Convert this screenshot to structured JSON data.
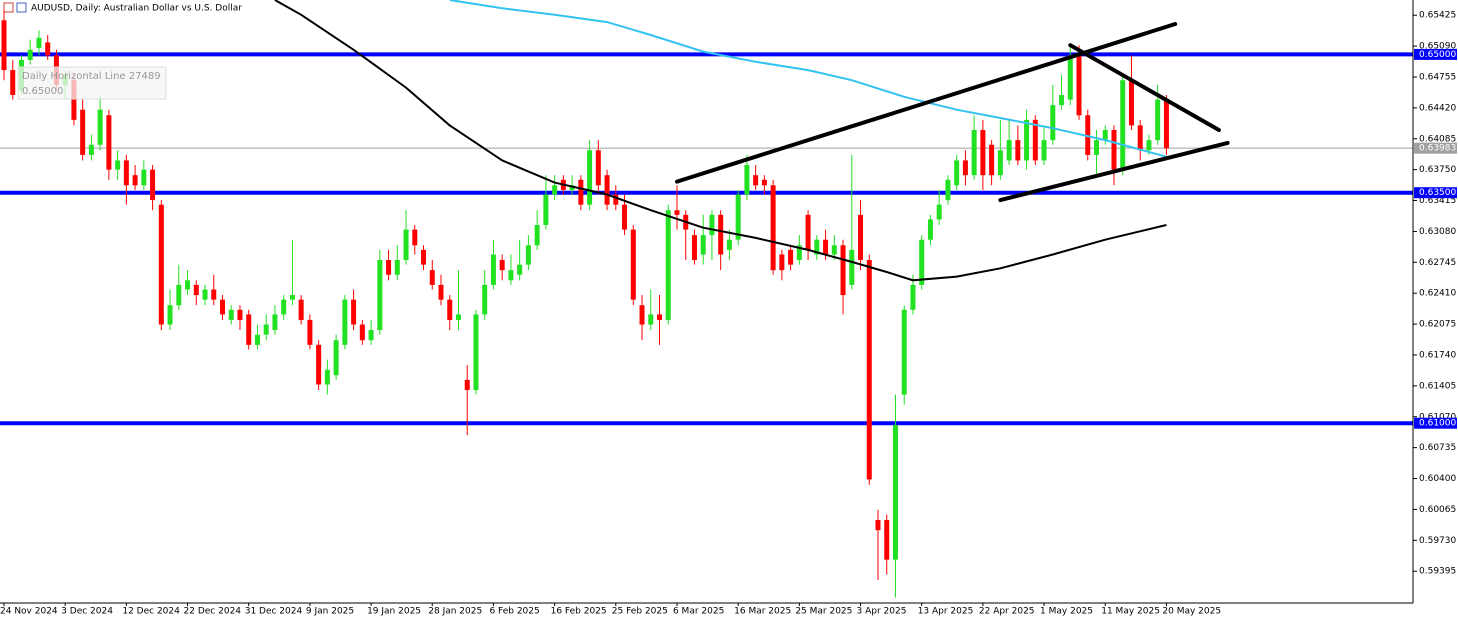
{
  "chart_data": {
    "type": "candlestick",
    "title": "AUDUSD, Daily:  Australian Dollar vs U.S. Dollar",
    "tooltip": [
      "Daily Horizontal Line 27489",
      "0.65000"
    ],
    "categories": [
      "24 Nov 2024",
      null,
      null,
      null,
      null,
      null,
      null,
      "3 Dec 2024",
      null,
      null,
      null,
      null,
      null,
      null,
      "12 Dec 2024",
      null,
      null,
      null,
      null,
      null,
      null,
      "22 Dec 2024",
      null,
      null,
      null,
      null,
      null,
      null,
      "31 Dec 2024",
      null,
      null,
      null,
      null,
      null,
      null,
      "9 Jan 2025",
      null,
      null,
      null,
      null,
      null,
      null,
      "19 Jan 2025",
      null,
      null,
      null,
      null,
      null,
      null,
      "28 Jan 2025",
      null,
      null,
      null,
      null,
      null,
      null,
      "6 Feb 2025",
      null,
      null,
      null,
      null,
      null,
      null,
      "16 Feb 2025",
      null,
      null,
      null,
      null,
      null,
      null,
      "25 Feb 2025",
      null,
      null,
      null,
      null,
      null,
      null,
      "6 Mar 2025",
      null,
      null,
      null,
      null,
      null,
      null,
      "16 Mar 2025",
      null,
      null,
      null,
      null,
      null,
      null,
      "25 Mar 2025",
      null,
      null,
      null,
      null,
      null,
      null,
      "3 Apr 2025",
      null,
      null,
      null,
      null,
      null,
      null,
      "13 Apr 2025",
      null,
      null,
      null,
      null,
      null,
      null,
      "22 Apr 2025",
      null,
      null,
      null,
      null,
      null,
      null,
      "1 May 2025",
      null,
      null,
      null,
      null,
      null,
      null,
      "11 May 2025",
      null,
      null,
      null,
      null,
      null,
      null,
      "20 May 2025"
    ],
    "open": [
      0.6537,
      0.6483,
      0.6461,
      0.6494,
      0.6507,
      0.6513,
      0.6499,
      0.6467,
      0.6472,
      0.644,
      0.6391,
      0.6402,
      0.6434,
      0.6375,
      0.6385,
      0.6369,
      0.6358,
      0.6375,
      0.6337,
      0.6207,
      0.6228,
      0.6245,
      0.625,
      0.6234,
      0.6245,
      0.6234,
      0.6212,
      0.6223,
      0.6218,
      0.6185,
      0.6196,
      0.6201,
      0.6218,
      0.6234,
      0.6234,
      0.6212,
      0.6185,
      0.6142,
      0.6152,
      0.6185,
      0.6234,
      0.6207,
      0.619,
      0.6201,
      0.6277,
      0.6261,
      0.6277,
      0.631,
      0.6288,
      0.6266,
      0.625,
      0.6234,
      0.6212,
      0.6147,
      0.6136,
      0.6218,
      0.625,
      0.6277,
      0.6255,
      0.6261,
      0.6272,
      0.6293,
      0.6315,
      0.6348,
      0.6364,
      0.6353,
      0.6364,
      0.6337,
      0.6396,
      0.6369,
      0.6348,
      0.6337,
      0.631,
      0.6228,
      0.6207,
      0.6218,
      0.6212,
      0.6331,
      0.6326,
      0.6304,
      0.6283,
      0.6304,
      0.6326,
      0.6288,
      0.6299,
      0.6348,
      0.6369,
      0.6364,
      0.6358,
      0.6283,
      0.6288,
      0.6277,
      0.6326,
      0.6283,
      0.6299,
      0.6283,
      0.6293,
      0.625,
      0.6326,
      0.6277,
      0.5995,
      0.5995,
      0.5952,
      0.6131,
      0.6223,
      0.625,
      0.6299,
      0.6321,
      0.6342,
      0.6358,
      0.6385,
      0.6369,
      0.6418,
      0.6402,
      0.6369,
      0.6385,
      0.6407,
      0.6385,
      0.6429,
      0.6385,
      0.6407,
      0.6445,
      0.6451,
      0.6499,
      0.6434,
      0.6391,
      0.6407,
      0.6418,
      0.6375,
      0.6472,
      0.6423,
      0.6396,
      0.6407,
      0.6451
    ],
    "high": [
      0.6548,
      0.6494,
      0.6499,
      0.6516,
      0.6526,
      0.6521,
      0.6505,
      0.6483,
      0.6478,
      0.6451,
      0.6413,
      0.6456,
      0.644,
      0.6396,
      0.6391,
      0.638,
      0.6385,
      0.638,
      0.6342,
      0.6245,
      0.6272,
      0.6266,
      0.6255,
      0.625,
      0.6261,
      0.6239,
      0.6228,
      0.6228,
      0.6223,
      0.6207,
      0.6218,
      0.6228,
      0.6239,
      0.6299,
      0.6239,
      0.6218,
      0.619,
      0.6169,
      0.6196,
      0.6239,
      0.6245,
      0.6212,
      0.6212,
      0.6288,
      0.6288,
      0.6293,
      0.6331,
      0.6315,
      0.6293,
      0.6277,
      0.6261,
      0.6239,
      0.6266,
      0.6163,
      0.6223,
      0.6266,
      0.6299,
      0.6283,
      0.6283,
      0.6299,
      0.6304,
      0.6331,
      0.6369,
      0.6369,
      0.6369,
      0.6369,
      0.6369,
      0.6407,
      0.6407,
      0.6375,
      0.6358,
      0.6348,
      0.6315,
      0.6239,
      0.6245,
      0.6239,
      0.6337,
      0.6358,
      0.6331,
      0.631,
      0.6326,
      0.6331,
      0.6331,
      0.631,
      0.6353,
      0.6391,
      0.638,
      0.6369,
      0.6364,
      0.6288,
      0.6293,
      0.6304,
      0.6331,
      0.6304,
      0.631,
      0.6304,
      0.6299,
      0.6391,
      0.6342,
      0.6283,
      0.6006,
      0.6001,
      0.6131,
      0.6228,
      0.6261,
      0.6304,
      0.6326,
      0.6353,
      0.6369,
      0.6391,
      0.6396,
      0.6434,
      0.6429,
      0.6407,
      0.6429,
      0.6429,
      0.6423,
      0.644,
      0.6434,
      0.6423,
      0.6467,
      0.6478,
      0.651,
      0.651,
      0.644,
      0.6418,
      0.6423,
      0.6423,
      0.6478,
      0.6499,
      0.6429,
      0.6413,
      0.6467,
      0.6456
    ],
    "low": [
      0.6472,
      0.6451,
      0.6456,
      0.6489,
      0.6499,
      0.6494,
      0.6461,
      0.6451,
      0.6423,
      0.6385,
      0.6385,
      0.6396,
      0.6364,
      0.6364,
      0.6337,
      0.6353,
      0.6353,
      0.6331,
      0.6201,
      0.6201,
      0.6223,
      0.6239,
      0.6228,
      0.6228,
      0.6228,
      0.6212,
      0.6207,
      0.6201,
      0.618,
      0.618,
      0.619,
      0.6196,
      0.6212,
      0.6228,
      0.6207,
      0.618,
      0.6136,
      0.6131,
      0.6147,
      0.618,
      0.6201,
      0.6185,
      0.6185,
      0.6196,
      0.6255,
      0.6255,
      0.6272,
      0.6283,
      0.6266,
      0.6245,
      0.6228,
      0.6201,
      0.6201,
      0.6087,
      0.6131,
      0.6212,
      0.6245,
      0.6255,
      0.625,
      0.6255,
      0.6266,
      0.6288,
      0.631,
      0.6342,
      0.6348,
      0.6348,
      0.6331,
      0.6331,
      0.6348,
      0.6331,
      0.6331,
      0.6304,
      0.6228,
      0.619,
      0.6201,
      0.6185,
      0.6207,
      0.631,
      0.6277,
      0.6272,
      0.6272,
      0.6277,
      0.6266,
      0.6277,
      0.6293,
      0.6342,
      0.6353,
      0.6348,
      0.6261,
      0.6255,
      0.6266,
      0.6272,
      0.6277,
      0.6277,
      0.6277,
      0.6277,
      0.6218,
      0.6245,
      0.6266,
      0.6033,
      0.593,
      0.5936,
      0.5911,
      0.612,
      0.6218,
      0.6245,
      0.6293,
      0.6315,
      0.6337,
      0.6353,
      0.6358,
      0.6364,
      0.6353,
      0.6358,
      0.6364,
      0.638,
      0.638,
      0.6375,
      0.638,
      0.638,
      0.6402,
      0.644,
      0.6445,
      0.6429,
      0.6385,
      0.6369,
      0.6402,
      0.6358,
      0.6369,
      0.6418,
      0.6385,
      0.6391,
      0.6402,
      0.6391
    ],
    "close": [
      0.6483,
      0.6456,
      0.6494,
      0.6505,
      0.6518,
      0.6499,
      0.6467,
      0.6478,
      0.6429,
      0.6391,
      0.6402,
      0.644,
      0.6375,
      0.6385,
      0.6358,
      0.6358,
      0.6375,
      0.6342,
      0.6207,
      0.6228,
      0.625,
      0.6255,
      0.6239,
      0.6245,
      0.6234,
      0.6218,
      0.6223,
      0.6212,
      0.6185,
      0.6196,
      0.6207,
      0.6218,
      0.6234,
      0.6239,
      0.6212,
      0.6185,
      0.6142,
      0.6158,
      0.619,
      0.6234,
      0.6207,
      0.619,
      0.6201,
      0.6277,
      0.6261,
      0.6277,
      0.631,
      0.6293,
      0.6272,
      0.625,
      0.6234,
      0.6212,
      0.6218,
      0.6136,
      0.6218,
      0.625,
      0.6283,
      0.6266,
      0.6266,
      0.6272,
      0.6293,
      0.6315,
      0.6348,
      0.6358,
      0.6353,
      0.6358,
      0.6337,
      0.6396,
      0.6358,
      0.6337,
      0.6337,
      0.631,
      0.6234,
      0.6207,
      0.6218,
      0.6212,
      0.6331,
      0.6326,
      0.631,
      0.6277,
      0.6304,
      0.6326,
      0.6283,
      0.6299,
      0.6348,
      0.638,
      0.6358,
      0.6358,
      0.6266,
      0.6266,
      0.6272,
      0.6293,
      0.6288,
      0.6299,
      0.6283,
      0.6293,
      0.6239,
      0.6288,
      0.6277,
      0.6039,
      0.5984,
      0.5952,
      0.6098,
      0.6223,
      0.625,
      0.6299,
      0.6321,
      0.6337,
      0.6364,
      0.6385,
      0.6369,
      0.6418,
      0.6369,
      0.6369,
      0.6396,
      0.6407,
      0.6385,
      0.6429,
      0.6385,
      0.6407,
      0.6445,
      0.6456,
      0.6499,
      0.6434,
      0.6391,
      0.6407,
      0.6418,
      0.6375,
      0.6472,
      0.6423,
      0.6396,
      0.6407,
      0.6451,
      0.6398
    ],
    "colors": {
      "up": "#22e022",
      "down": "#ff0000"
    },
    "ylim": [
      0.5905,
      0.6559
    ],
    "yticks": [
      0.65425,
      {
        "value": 0.6509,
        "label": "0.65090"
      },
      0.64755,
      {
        "value": 0.6442,
        "label": "0.64420"
      },
      0.64085,
      {
        "value": 0.6375,
        "label": "0.63750"
      },
      0.63415,
      {
        "value": 0.6308,
        "label": "0.63080"
      },
      0.62745,
      {
        "value": 0.6241,
        "label": "0.62410"
      },
      0.62075,
      {
        "value": 0.6174,
        "label": "0.61740"
      },
      0.61405,
      {
        "value": 0.6107,
        "label": "0.61070"
      },
      0.60735,
      {
        "value": 0.604,
        "label": "0.60400"
      },
      0.60065,
      {
        "value": 0.5973,
        "label": "0.59730"
      },
      0.59395
    ],
    "grid": false,
    "lines": [
      {
        "color": "#000000",
        "x": [
          31,
          34,
          40,
          46,
          51,
          57,
          63,
          69,
          74,
          80,
          86,
          92,
          97,
          101,
          104,
          109,
          114,
          120,
          126,
          133
        ],
        "values": [
          0.6559,
          0.6543,
          0.6505,
          0.6464,
          0.6423,
          0.6385,
          0.6361,
          0.6348,
          0.6331,
          0.6312,
          0.6301,
          0.6288,
          0.6275,
          0.6264,
          0.6255,
          0.6259,
          0.6268,
          0.6283,
          0.6299,
          0.6315
        ]
      },
      {
        "color": "#33c3f0",
        "x": [
          51,
          57,
          63,
          69,
          74,
          80,
          86,
          92,
          97,
          103,
          109,
          114,
          120,
          126,
          133
        ],
        "values": [
          0.6559,
          0.655,
          0.6543,
          0.6535,
          0.6521,
          0.6503,
          0.6492,
          0.6483,
          0.6472,
          0.6454,
          0.644,
          0.6431,
          0.642,
          0.6407,
          0.6389
        ]
      }
    ],
    "trendlines": [
      {
        "color": "#000000",
        "x": [
          77,
          134
        ],
        "values": [
          0.6362,
          0.6533
        ]
      },
      {
        "color": "#000000",
        "x": [
          114,
          140
        ],
        "values": [
          0.6342,
          0.6404
        ]
      },
      {
        "color": "#000000",
        "x": [
          122,
          139
        ],
        "values": [
          0.651,
          0.6418
        ]
      }
    ],
    "level_color": "#0000ff",
    "levels": [
      {
        "value": 0.65,
        "label": "0.65000"
      },
      {
        "value": 0.635,
        "label": "0.63500"
      },
      {
        "value": 0.61,
        "label": "0.61000"
      }
    ],
    "current_price": {
      "value": 0.63983,
      "label": "0.63983"
    }
  }
}
